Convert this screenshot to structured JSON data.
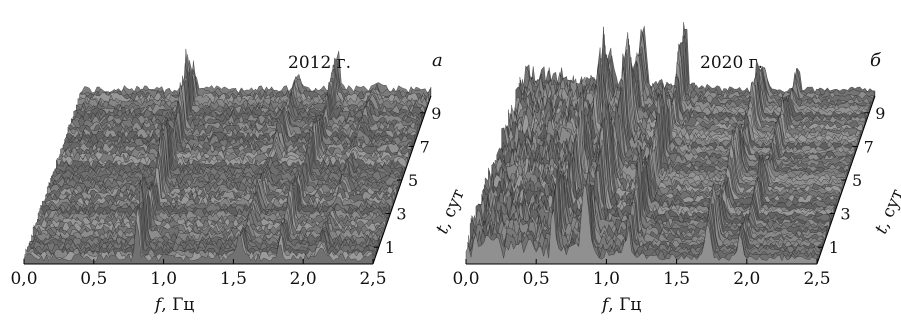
{
  "chart_data": [
    {
      "type": "area",
      "panel_letter": "а",
      "year_label": "2012 г.",
      "xlabel_var": "f",
      "xlabel_unit": ", Гц",
      "ylabel_var": "t",
      "ylabel_unit": ", сут",
      "xlim": [
        0,
        2.5
      ],
      "ylim": [
        0,
        10
      ],
      "x_ticks": [
        "0,0",
        "0,5",
        "1,0",
        "1,5",
        "2,0",
        "2,5"
      ],
      "y_ticks": [
        "1",
        "3",
        "5",
        "7",
        "9"
      ],
      "peaks": [
        {
          "f": 0.81,
          "amplitude": 0.95
        },
        {
          "f": 1.55,
          "amplitude": 0.35
        },
        {
          "f": 1.83,
          "amplitude": 0.65
        },
        {
          "f": 2.12,
          "amplitude": 0.25
        }
      ]
    },
    {
      "type": "area",
      "panel_letter": "б",
      "year_label": "2020 г.",
      "xlabel_var": "f",
      "xlabel_unit": ", Гц",
      "ylabel_var": "t",
      "ylabel_unit": ", сут",
      "xlim": [
        0,
        2.5
      ],
      "ylim": [
        0,
        10
      ],
      "x_ticks": [
        "0,0",
        "0,5",
        "1,0",
        "1,5",
        "2,0",
        "2,5"
      ],
      "y_ticks": [
        "1",
        "3",
        "5",
        "7",
        "9"
      ],
      "peaks": [
        {
          "f": 0.62,
          "amplitude": 0.8
        },
        {
          "f": 0.85,
          "amplitude": 1.0
        },
        {
          "f": 1.15,
          "amplitude": 0.8
        },
        {
          "f": 1.72,
          "amplitude": 0.55
        },
        {
          "f": 1.95,
          "amplitude": 0.4
        }
      ]
    }
  ]
}
